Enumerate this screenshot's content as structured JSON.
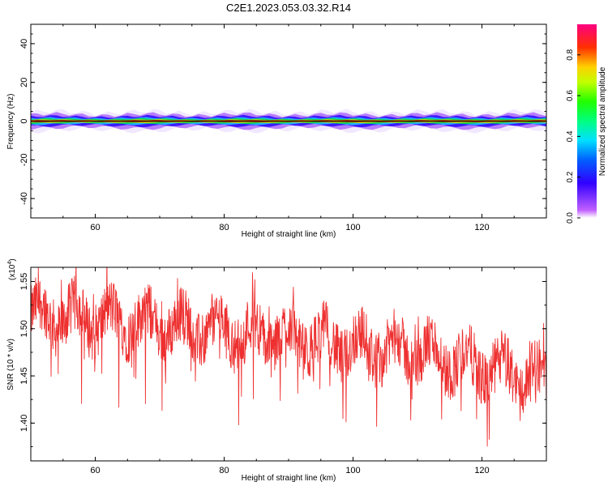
{
  "title": "C2E1.2023.053.03.32.R14",
  "chart_data": [
    {
      "type": "heatmap",
      "xlabel": "Height of straight line (km)",
      "ylabel": "Frequency (Hz)",
      "xlim": [
        50,
        130
      ],
      "ylim": [
        -50,
        50
      ],
      "x_ticks": [
        60,
        80,
        100,
        120
      ],
      "y_ticks": [
        -40,
        -20,
        0,
        20,
        40
      ],
      "band": {
        "center_frequency": 0,
        "half_width_hz": 1.5,
        "peak_amplitude": 0.95,
        "description_colors": [
          "#ff0000",
          "#ffd000",
          "#00d000",
          "#0000ff",
          "#a000ff"
        ]
      },
      "colorbar": {
        "label": "Normalized spectral amplitude",
        "range": [
          0.0,
          0.95
        ],
        "ticks": [
          0.0,
          0.2,
          0.4,
          0.6,
          0.8
        ]
      }
    },
    {
      "type": "line",
      "xlabel": "Height of straight line (km)",
      "ylabel": "SNR (10 * v/v)",
      "yunit_multiplier": "(x10",
      "yunit_exp": "4",
      "yunit_close": ")",
      "xlim": [
        50,
        130
      ],
      "ylim": [
        1.36,
        1.565
      ],
      "x_ticks": [
        60,
        80,
        100,
        120
      ],
      "y_ticks": [
        1.4,
        1.45,
        1.5,
        1.55
      ],
      "color": "#ee3030",
      "trend": {
        "x": [
          50,
          70,
          90,
          110,
          130
        ],
        "y": [
          1.515,
          1.505,
          1.49,
          1.475,
          1.445
        ]
      }
    }
  ]
}
